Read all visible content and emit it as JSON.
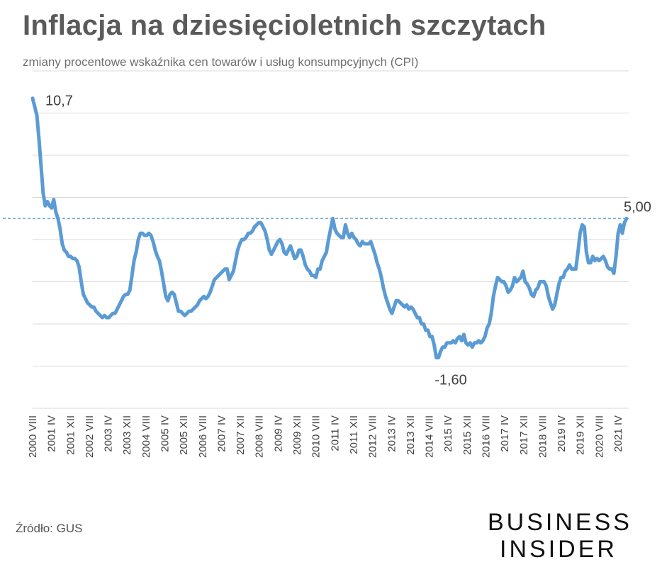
{
  "title": "Inflacja na dziesięcioletnich szczytach",
  "subtitle": "zmiany procentowe wskaźnika cen towarów i usług konsumpcyjnych (CPI)",
  "source": "Źródło: GUS",
  "logo": {
    "line1": "BUSINESS",
    "line2": "INSIDER"
  },
  "colors": {
    "line": "#5b9bd5",
    "reference": "#5b9bd5",
    "grid": "#d9d9d9"
  },
  "chart_data": {
    "type": "line",
    "title": "Inflacja na dziesięcioletnich szczytach",
    "ylabel": "",
    "xlabel": "",
    "ylim": [
      -4,
      12
    ],
    "grid": true,
    "x_tick_labels": [
      "2000 VIII",
      "2001 IV",
      "2001 XII",
      "2002 VIII",
      "2003 IV",
      "2003 XII",
      "2004 VIII",
      "2005 IV",
      "2005 XII",
      "2006 VIII",
      "2007 IV",
      "2007 XII",
      "2008 VIII",
      "2009 IV",
      "2009 XII",
      "2010 VIII",
      "2011 IV",
      "2011 XII",
      "2012 VIII",
      "2013 IV",
      "2013 XII",
      "2014 VIII",
      "2015 IV",
      "2015 XII",
      "2016 VIII",
      "2017 IV",
      "2017 XII",
      "2018 VIII",
      "2019 IV",
      "2019 XII",
      "2020 VIII",
      "2021 IV"
    ],
    "reference_line": {
      "value": 5.0,
      "label": "5,00",
      "style": "dashed"
    },
    "annotations": [
      {
        "label": "10,7",
        "value": 10.7,
        "at": "2000 VIII"
      },
      {
        "label": "5,00",
        "value": 5.0,
        "at": "2021 V"
      },
      {
        "label": "-1,60",
        "value": -1.6,
        "at": "2015 II"
      }
    ],
    "series": [
      {
        "values": [
          10.7,
          10.3,
          9.9,
          8.8,
          7.5,
          6.2,
          5.6,
          5.8,
          5.6,
          5.5,
          5.9,
          5.3,
          5.0,
          4.5,
          3.8,
          3.5,
          3.4,
          3.2,
          3.2,
          3.1,
          3.1,
          3.0,
          2.7,
          2.0,
          1.4,
          1.2,
          1.0,
          0.9,
          0.8,
          0.8,
          0.6,
          0.5,
          0.4,
          0.3,
          0.4,
          0.3,
          0.3,
          0.4,
          0.5,
          0.5,
          0.7,
          0.9,
          1.1,
          1.3,
          1.4,
          1.4,
          1.6,
          2.3,
          3.0,
          3.4,
          4.0,
          4.3,
          4.3,
          4.2,
          4.2,
          4.3,
          4.2,
          3.9,
          3.5,
          3.2,
          3.0,
          2.5,
          1.9,
          1.3,
          1.1,
          1.4,
          1.5,
          1.4,
          1.0,
          0.6,
          0.6,
          0.5,
          0.4,
          0.5,
          0.6,
          0.6,
          0.7,
          0.8,
          0.9,
          1.1,
          1.2,
          1.3,
          1.2,
          1.3,
          1.5,
          1.8,
          2.1,
          2.2,
          2.3,
          2.4,
          2.5,
          2.6,
          2.6,
          2.1,
          2.3,
          2.5,
          3.0,
          3.5,
          3.8,
          4.0,
          4.0,
          4.1,
          4.3,
          4.3,
          4.4,
          4.6,
          4.7,
          4.8,
          4.8,
          4.6,
          4.4,
          4.0,
          3.5,
          3.3,
          3.5,
          3.7,
          3.9,
          4.0,
          3.8,
          3.4,
          3.3,
          3.5,
          3.7,
          3.4,
          3.1,
          3.2,
          3.5,
          3.5,
          3.2,
          2.8,
          2.6,
          2.5,
          2.3,
          2.3,
          2.2,
          2.6,
          2.6,
          3.0,
          3.2,
          3.4,
          4.0,
          4.5,
          5.0,
          4.5,
          4.3,
          4.2,
          4.1,
          4.1,
          4.7,
          4.3,
          4.1,
          4.3,
          4.1,
          4.0,
          3.8,
          3.7,
          3.9,
          3.8,
          3.8,
          3.8,
          3.9,
          3.6,
          3.3,
          2.9,
          2.6,
          2.2,
          1.7,
          1.3,
          1.0,
          0.7,
          0.5,
          0.8,
          1.1,
          1.1,
          1.0,
          0.9,
          0.8,
          0.9,
          0.7,
          0.8,
          0.7,
          0.5,
          0.3,
          0.3,
          0.0,
          0.0,
          -0.3,
          -0.3,
          -0.6,
          -0.6,
          -1.0,
          -1.6,
          -1.6,
          -1.3,
          -1.1,
          -1.1,
          -0.9,
          -0.9,
          -0.9,
          -0.8,
          -0.9,
          -0.7,
          -0.6,
          -0.8,
          -0.5,
          -0.9,
          -1.0,
          -0.9,
          -1.1,
          -0.9,
          -0.9,
          -0.8,
          -0.9,
          -0.8,
          -0.6,
          -0.2,
          0.0,
          0.5,
          1.3,
          1.8,
          2.2,
          2.1,
          2.0,
          2.0,
          1.8,
          1.5,
          1.6,
          1.8,
          2.2,
          2.0,
          2.1,
          2.2,
          2.5,
          2.0,
          1.9,
          1.7,
          1.4,
          1.3,
          1.6,
          1.7,
          2.0,
          2.0,
          2.0,
          1.8,
          1.3,
          1.0,
          0.7,
          0.9,
          1.4,
          1.9,
          2.2,
          2.2,
          2.5,
          2.6,
          2.8,
          2.6,
          2.6,
          2.6,
          3.4,
          4.3,
          4.7,
          4.6,
          3.4,
          2.9,
          2.9,
          3.2,
          3.0,
          3.1,
          3.0,
          3.1,
          3.2,
          3.0,
          2.7,
          2.6,
          2.6,
          2.4,
          3.2,
          4.3,
          4.7,
          4.3,
          4.8,
          5.0
        ]
      }
    ]
  }
}
